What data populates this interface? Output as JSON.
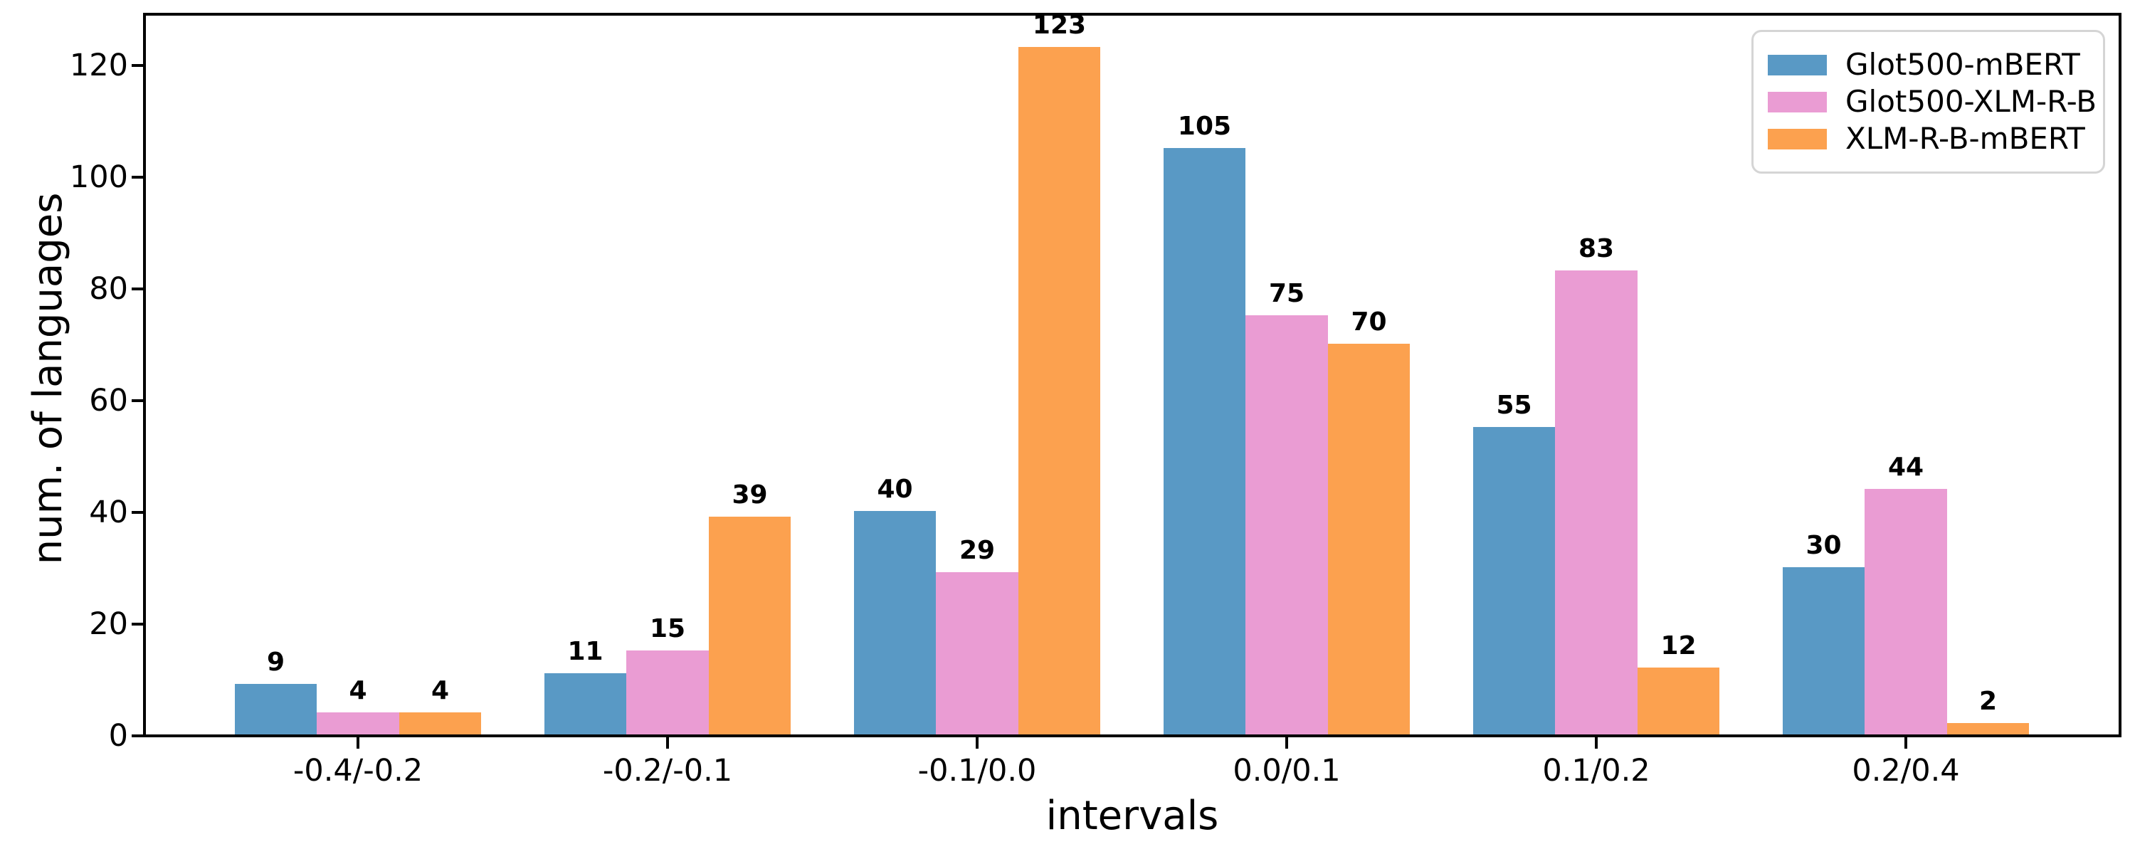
{
  "chart_data": {
    "type": "bar",
    "title": "",
    "xlabel": "intervals",
    "ylabel": "num. of languages",
    "categories": [
      "-0.4/-0.2",
      "-0.2/-0.1",
      "-0.1/0.0",
      "0.0/0.1",
      "0.1/0.2",
      "0.2/0.4"
    ],
    "series": [
      {
        "name": "Glot500-mBERT",
        "color": "#5999C5",
        "values": [
          9,
          11,
          40,
          105,
          55,
          30
        ]
      },
      {
        "name": "Glot500-XLM-R-B",
        "color": "#EA9CD3",
        "values": [
          4,
          15,
          29,
          75,
          83,
          44
        ]
      },
      {
        "name": "XLM-R-B-mBERT",
        "color": "#FCA14F",
        "values": [
          4,
          39,
          123,
          70,
          12,
          2
        ]
      }
    ],
    "yticks": [
      0,
      20,
      40,
      60,
      80,
      100,
      120
    ],
    "ylim": [
      0,
      130
    ],
    "bar_value_labels": true,
    "legend_position": "upper right",
    "grid": false,
    "axis_color": "#000000",
    "legend_border_color": "#d5d5d5"
  }
}
